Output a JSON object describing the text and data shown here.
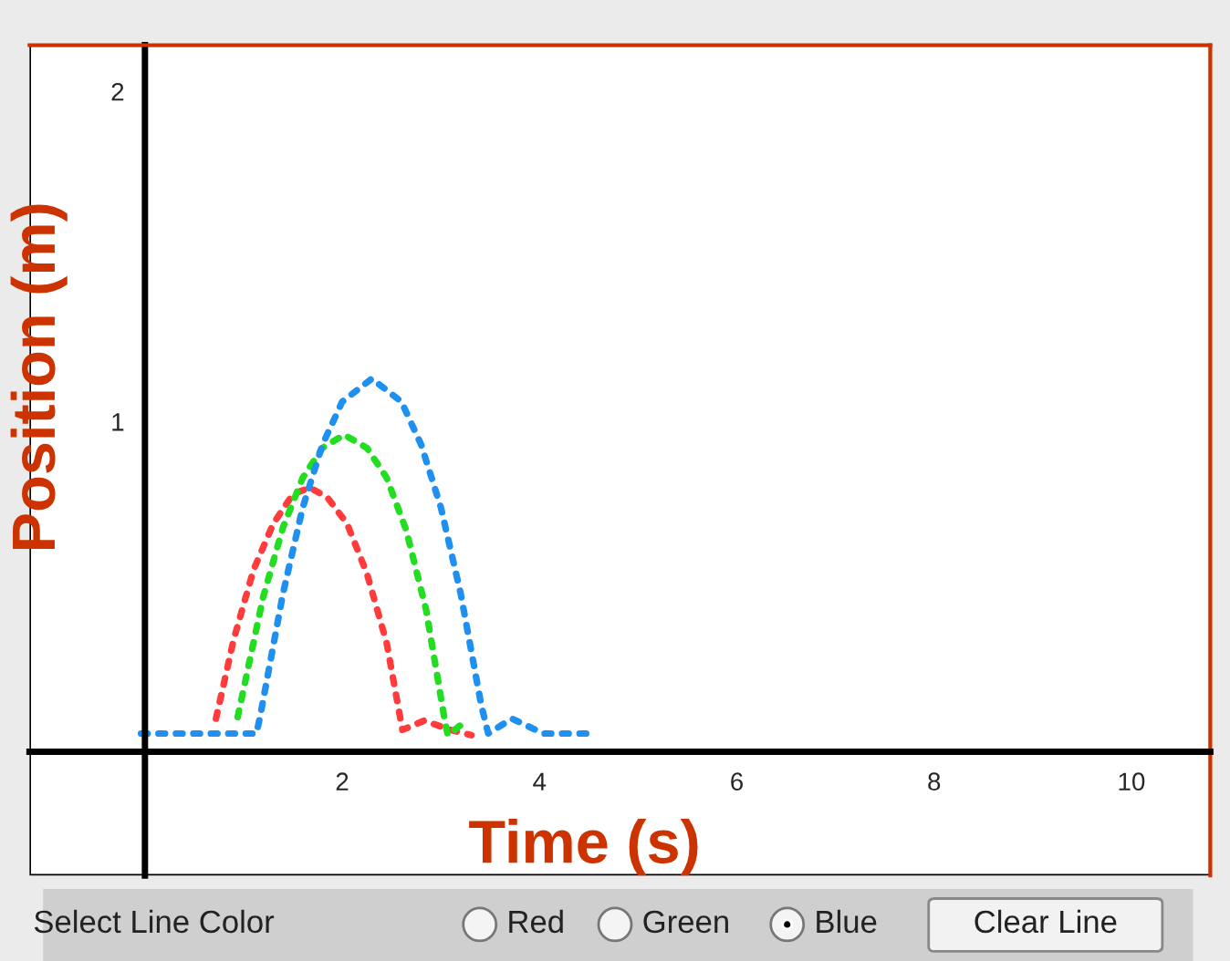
{
  "chart_data": {
    "type": "line",
    "xlabel": "Time (s)",
    "ylabel": "Position (m)",
    "xlim": [
      -1.17,
      10.8
    ],
    "ylim": [
      -0.375,
      2.14
    ],
    "xticks": [
      2,
      4,
      6,
      8,
      10
    ],
    "yticks": [
      1,
      2
    ],
    "grid": false,
    "legend": false,
    "line_style": "dotted",
    "marker": "none",
    "series": [
      {
        "color": "#ff3b3b",
        "x": [
          0.72,
          0.9,
          1.1,
          1.3,
          1.5,
          1.67,
          1.85,
          2.05,
          2.25,
          2.45,
          2.61,
          2.83,
          3.1,
          3.31
        ],
        "values": [
          0.1,
          0.34,
          0.55,
          0.69,
          0.78,
          0.8,
          0.77,
          0.69,
          0.54,
          0.33,
          0.066,
          0.094,
          0.066,
          0.05
        ]
      },
      {
        "color": "#22dd22",
        "x": [
          0.94,
          1.2,
          1.4,
          1.6,
          1.8,
          2.02,
          2.25,
          2.45,
          2.65,
          2.85,
          3.04,
          3.07,
          3.26
        ],
        "values": [
          0.105,
          0.47,
          0.68,
          0.83,
          0.92,
          0.96,
          0.92,
          0.83,
          0.67,
          0.43,
          0.094,
          0.05,
          0.094
        ]
      },
      {
        "color": "#2090f0",
        "x": [
          -0.04,
          1.13,
          1.17,
          1.4,
          1.6,
          1.8,
          2.0,
          2.3,
          2.6,
          2.8,
          3.0,
          3.2,
          3.41,
          3.48,
          3.72,
          4.04,
          4.52
        ],
        "values": [
          0.055,
          0.055,
          0.11,
          0.48,
          0.74,
          0.93,
          1.06,
          1.13,
          1.06,
          0.93,
          0.74,
          0.48,
          0.14,
          0.055,
          0.1,
          0.055,
          0.055
        ]
      }
    ],
    "annotations": [
      "Select Line Color",
      "Red",
      "Green",
      "Blue",
      "Clear Line"
    ]
  }
}
